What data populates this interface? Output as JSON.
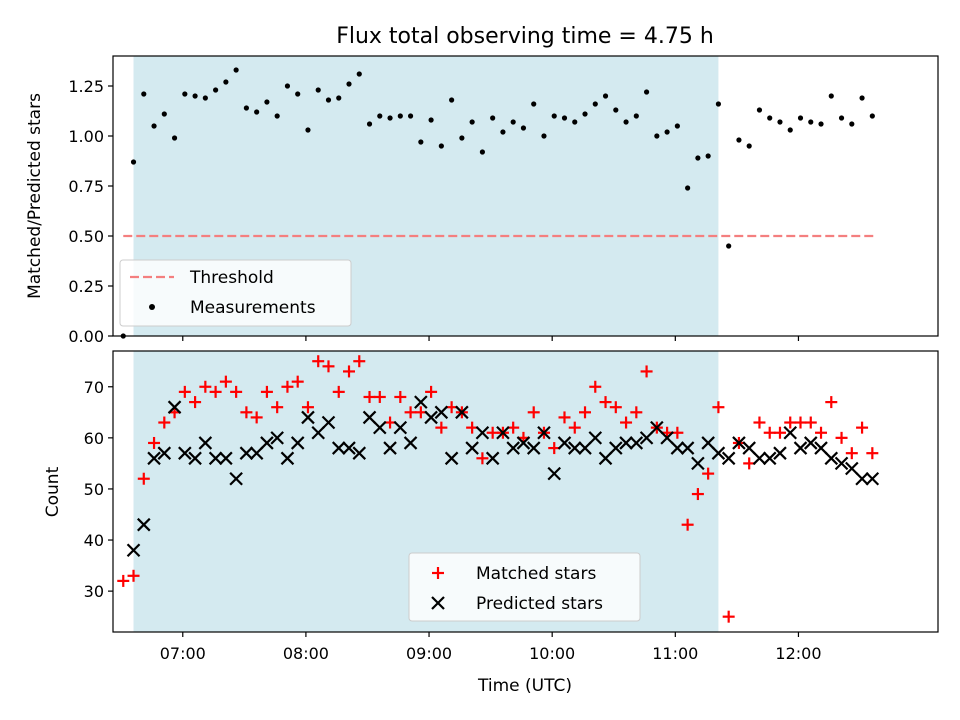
{
  "chart_data": [
    {
      "type": "scatter",
      "title": "Flux total observing time = 4.75 h",
      "xlabel": "",
      "ylabel": "Matched/Predicted stars",
      "xlim": [
        "06:26",
        "13:08"
      ],
      "ylim": [
        0,
        1.4
      ],
      "yticks": [
        "0.00",
        "0.25",
        "0.50",
        "0.75",
        "1.00",
        "1.25"
      ],
      "xticks": [
        "07:00",
        "08:00",
        "09:00",
        "10:00",
        "11:00",
        "12:00"
      ],
      "xtick_labels_shown": false,
      "observing_window": {
        "start": "06:36",
        "end": "11:21",
        "color": "#d4eaf0"
      },
      "threshold": {
        "name": "Threshold",
        "value": 0.5,
        "x_start": "06:31",
        "x_end": "12:37",
        "color": "#f47f7f",
        "style": "dashed"
      },
      "series": [
        {
          "name": "Measurements",
          "color": "#000000",
          "marker": "dot",
          "x": [
            "06:31",
            "06:36",
            "06:41",
            "06:46",
            "06:51",
            "06:56",
            "07:01",
            "07:06",
            "07:11",
            "07:16",
            "07:21",
            "07:26",
            "07:31",
            "07:36",
            "07:41",
            "07:46",
            "07:51",
            "07:56",
            "08:01",
            "08:06",
            "08:11",
            "08:16",
            "08:21",
            "08:26",
            "08:31",
            "08:36",
            "08:41",
            "08:46",
            "08:51",
            "08:56",
            "09:01",
            "09:06",
            "09:11",
            "09:16",
            "09:21",
            "09:26",
            "09:31",
            "09:36",
            "09:41",
            "09:46",
            "09:51",
            "09:56",
            "10:01",
            "10:06",
            "10:11",
            "10:16",
            "10:21",
            "10:26",
            "10:31",
            "10:36",
            "10:41",
            "10:46",
            "10:51",
            "10:56",
            "11:01",
            "11:06",
            "11:11",
            "11:16",
            "11:21",
            "11:26",
            "11:31",
            "11:36",
            "11:41",
            "11:46",
            "11:51",
            "11:56",
            "12:01",
            "12:06",
            "12:11",
            "12:16",
            "12:21",
            "12:26",
            "12:31",
            "12:36"
          ],
          "y": [
            0.0,
            0.87,
            1.21,
            1.05,
            1.11,
            0.99,
            1.21,
            1.2,
            1.19,
            1.23,
            1.27,
            1.33,
            1.14,
            1.12,
            1.17,
            1.1,
            1.25,
            1.21,
            1.03,
            1.23,
            1.18,
            1.19,
            1.26,
            1.31,
            1.06,
            1.1,
            1.09,
            1.1,
            1.1,
            0.97,
            1.08,
            0.95,
            1.18,
            0.99,
            1.07,
            0.92,
            1.09,
            1.02,
            1.07,
            1.04,
            1.16,
            1.0,
            1.1,
            1.09,
            1.07,
            1.11,
            1.16,
            1.2,
            1.13,
            1.07,
            1.1,
            1.22,
            1.0,
            1.02,
            1.05,
            0.74,
            0.89,
            0.9,
            1.16,
            0.45,
            0.98,
            0.95,
            1.13,
            1.09,
            1.07,
            1.03,
            1.09,
            1.07,
            1.06,
            1.2,
            1.09,
            1.06,
            1.19,
            1.1
          ]
        }
      ],
      "legend": {
        "placement": "lower-left",
        "entries": [
          "Threshold",
          "Measurements"
        ]
      }
    },
    {
      "type": "scatter",
      "title": "",
      "xlabel": "Time (UTC)",
      "ylabel": "Count",
      "xlim": [
        "06:26",
        "13:08"
      ],
      "ylim": [
        22,
        77
      ],
      "yticks": [
        "30",
        "40",
        "50",
        "60",
        "70"
      ],
      "xticks": [
        "07:00",
        "08:00",
        "09:00",
        "10:00",
        "11:00",
        "12:00"
      ],
      "observing_window": {
        "start": "06:36",
        "end": "11:21",
        "color": "#d4eaf0"
      },
      "series": [
        {
          "name": "Matched stars",
          "color": "#ff0000",
          "marker": "plus",
          "x": [
            "06:31",
            "06:36",
            "06:41",
            "06:46",
            "06:51",
            "06:56",
            "07:01",
            "07:06",
            "07:11",
            "07:16",
            "07:21",
            "07:26",
            "07:31",
            "07:36",
            "07:41",
            "07:46",
            "07:51",
            "07:56",
            "08:01",
            "08:06",
            "08:11",
            "08:16",
            "08:21",
            "08:26",
            "08:31",
            "08:36",
            "08:41",
            "08:46",
            "08:51",
            "08:56",
            "09:01",
            "09:06",
            "09:11",
            "09:16",
            "09:21",
            "09:26",
            "09:31",
            "09:36",
            "09:41",
            "09:46",
            "09:51",
            "09:56",
            "10:01",
            "10:06",
            "10:11",
            "10:16",
            "10:21",
            "10:26",
            "10:31",
            "10:36",
            "10:41",
            "10:46",
            "10:51",
            "10:56",
            "11:01",
            "11:06",
            "11:11",
            "11:16",
            "11:21",
            "11:26",
            "11:31",
            "11:36",
            "11:41",
            "11:46",
            "11:51",
            "11:56",
            "12:01",
            "12:06",
            "12:11",
            "12:16",
            "12:21",
            "12:26",
            "12:31",
            "12:36"
          ],
          "y": [
            32,
            33,
            52,
            59,
            63,
            65,
            69,
            67,
            70,
            69,
            71,
            69,
            65,
            64,
            69,
            66,
            70,
            71,
            66,
            75,
            74,
            69,
            73,
            75,
            68,
            68,
            63,
            68,
            65,
            65,
            69,
            62,
            66,
            65,
            62,
            56,
            61,
            61,
            62,
            60,
            65,
            61,
            58,
            64,
            62,
            65,
            70,
            67,
            66,
            63,
            65,
            73,
            62,
            61,
            61,
            43,
            49,
            53,
            66,
            25,
            59,
            55,
            63,
            61,
            61,
            63,
            63,
            63,
            61,
            67,
            60,
            57,
            62,
            57
          ]
        },
        {
          "name": "Predicted stars",
          "color": "#000000",
          "marker": "x",
          "x": [
            "06:36",
            "06:41",
            "06:46",
            "06:51",
            "06:56",
            "07:01",
            "07:06",
            "07:11",
            "07:16",
            "07:21",
            "07:26",
            "07:31",
            "07:36",
            "07:41",
            "07:46",
            "07:51",
            "07:56",
            "08:01",
            "08:06",
            "08:11",
            "08:16",
            "08:21",
            "08:26",
            "08:31",
            "08:36",
            "08:41",
            "08:46",
            "08:51",
            "08:56",
            "09:01",
            "09:06",
            "09:11",
            "09:16",
            "09:21",
            "09:26",
            "09:31",
            "09:36",
            "09:41",
            "09:46",
            "09:51",
            "09:56",
            "10:01",
            "10:06",
            "10:11",
            "10:16",
            "10:21",
            "10:26",
            "10:31",
            "10:36",
            "10:41",
            "10:46",
            "10:51",
            "10:56",
            "11:01",
            "11:06",
            "11:11",
            "11:16",
            "11:21",
            "11:26",
            "11:31",
            "11:36",
            "11:41",
            "11:46",
            "11:51",
            "11:56",
            "12:01",
            "12:06",
            "12:11",
            "12:16",
            "12:21",
            "12:26",
            "12:31",
            "12:36"
          ],
          "y": [
            38,
            43,
            56,
            57,
            66,
            57,
            56,
            59,
            56,
            56,
            52,
            57,
            57,
            59,
            60,
            56,
            59,
            64,
            61,
            63,
            58,
            58,
            57,
            64,
            62,
            58,
            62,
            59,
            67,
            64,
            65,
            56,
            65,
            58,
            61,
            56,
            61,
            58,
            59,
            58,
            61,
            53,
            59,
            58,
            58,
            60,
            56,
            58,
            59,
            59,
            60,
            62,
            60,
            58,
            58,
            55,
            59,
            57,
            56,
            59,
            58,
            56,
            56,
            57,
            61,
            58,
            59,
            58,
            56,
            55,
            54,
            52,
            52
          ]
        }
      ],
      "legend": {
        "placement": "lower-center",
        "entries": [
          "Matched stars",
          "Predicted stars"
        ]
      }
    }
  ]
}
